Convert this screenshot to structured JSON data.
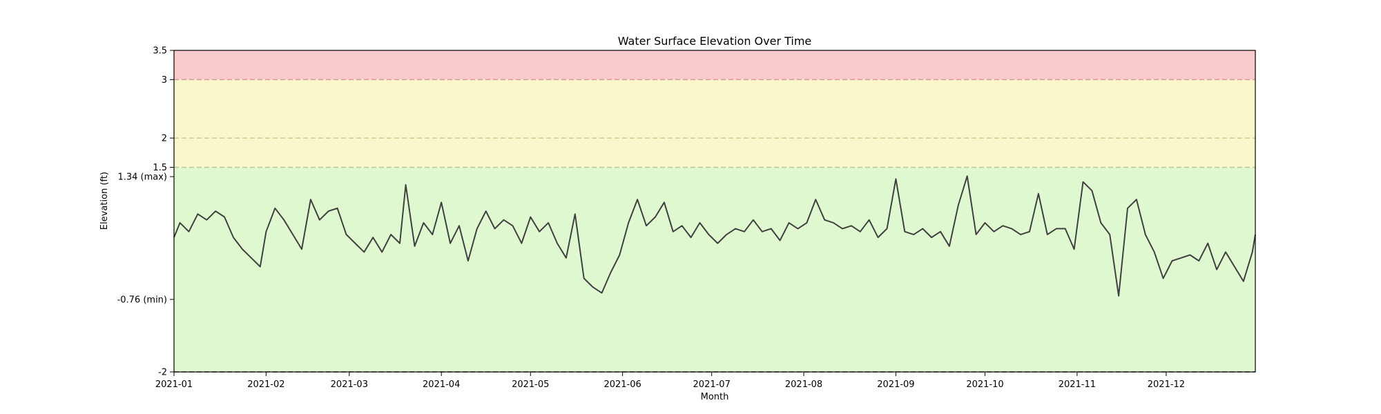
{
  "chart_data": {
    "type": "line",
    "title": "Water Surface Elevation Over Time",
    "xlabel": "Month",
    "ylabel": "Elevation (ft)",
    "xlim": [
      "2021-01-01",
      "2021-12-31"
    ],
    "ylim": [
      -2,
      3.5
    ],
    "x_ticks": [
      "2021-01",
      "2021-02",
      "2021-03",
      "2021-04",
      "2021-05",
      "2021-06",
      "2021-07",
      "2021-08",
      "2021-09",
      "2021-10",
      "2021-11",
      "2021-12"
    ],
    "y_ticks": [
      {
        "value": -2,
        "label": "-2"
      },
      {
        "value": -0.76,
        "label": "-0.76 (min)"
      },
      {
        "value": 1.34,
        "label": "1.34 (max)"
      },
      {
        "value": 1.5,
        "label": "1.5"
      },
      {
        "value": 2,
        "label": "2"
      },
      {
        "value": 3,
        "label": "3"
      },
      {
        "value": 3.5,
        "label": "3.5"
      }
    ],
    "bands": [
      {
        "from": -2,
        "to": 1.5,
        "color": "#e0f8cf"
      },
      {
        "from": 1.5,
        "to": 3,
        "color": "#f9f7cb"
      },
      {
        "from": 3,
        "to": 3.5,
        "color": "#f9cbcd"
      }
    ],
    "threshold_lines": [
      {
        "value": -2,
        "color": "#4a4a4a"
      },
      {
        "value": 1.5,
        "color": "#b8c49c"
      },
      {
        "value": 2,
        "color": "#cfcf90"
      },
      {
        "value": 3,
        "color": "#d99a9c"
      }
    ],
    "grid": false,
    "series": [
      {
        "color": "#404040",
        "x": [
          "2021-01-01",
          "2021-01-03",
          "2021-01-06",
          "2021-01-09",
          "2021-01-12",
          "2021-01-15",
          "2021-01-18",
          "2021-01-21",
          "2021-01-24",
          "2021-01-27",
          "2021-01-30",
          "2021-02-01",
          "2021-02-04",
          "2021-02-07",
          "2021-02-10",
          "2021-02-13",
          "2021-02-16",
          "2021-02-19",
          "2021-02-22",
          "2021-02-25",
          "2021-02-28",
          "2021-03-03",
          "2021-03-06",
          "2021-03-09",
          "2021-03-12",
          "2021-03-15",
          "2021-03-18",
          "2021-03-20",
          "2021-03-23",
          "2021-03-26",
          "2021-03-29",
          "2021-04-01",
          "2021-04-04",
          "2021-04-07",
          "2021-04-10",
          "2021-04-13",
          "2021-04-16",
          "2021-04-19",
          "2021-04-22",
          "2021-04-25",
          "2021-04-28",
          "2021-05-01",
          "2021-05-04",
          "2021-05-07",
          "2021-05-10",
          "2021-05-13",
          "2021-05-16",
          "2021-05-19",
          "2021-05-22",
          "2021-05-25",
          "2021-05-28",
          "2021-05-31",
          "2021-06-03",
          "2021-06-06",
          "2021-06-09",
          "2021-06-12",
          "2021-06-15",
          "2021-06-18",
          "2021-06-21",
          "2021-06-24",
          "2021-06-27",
          "2021-06-30",
          "2021-07-03",
          "2021-07-06",
          "2021-07-09",
          "2021-07-12",
          "2021-07-15",
          "2021-07-18",
          "2021-07-21",
          "2021-07-24",
          "2021-07-27",
          "2021-07-30",
          "2021-08-02",
          "2021-08-05",
          "2021-08-08",
          "2021-08-11",
          "2021-08-14",
          "2021-08-17",
          "2021-08-20",
          "2021-08-23",
          "2021-08-26",
          "2021-08-29",
          "2021-09-01",
          "2021-09-04",
          "2021-09-07",
          "2021-09-10",
          "2021-09-13",
          "2021-09-16",
          "2021-09-19",
          "2021-09-22",
          "2021-09-25",
          "2021-09-28",
          "2021-10-01",
          "2021-10-04",
          "2021-10-07",
          "2021-10-10",
          "2021-10-13",
          "2021-10-16",
          "2021-10-19",
          "2021-10-22",
          "2021-10-25",
          "2021-10-28",
          "2021-10-31",
          "2021-11-03",
          "2021-11-06",
          "2021-11-09",
          "2021-11-12",
          "2021-11-15",
          "2021-11-18",
          "2021-11-21",
          "2021-11-24",
          "2021-11-27",
          "2021-11-30",
          "2021-12-03",
          "2021-12-06",
          "2021-12-09",
          "2021-12-12",
          "2021-12-15",
          "2021-12-18",
          "2021-12-21",
          "2021-12-24",
          "2021-12-27",
          "2021-12-30",
          "2021-12-31"
        ],
        "y": [
          0.3,
          0.55,
          0.4,
          0.7,
          0.6,
          0.75,
          0.65,
          0.3,
          0.1,
          -0.05,
          -0.2,
          0.4,
          0.8,
          0.6,
          0.35,
          0.1,
          0.95,
          0.6,
          0.75,
          0.8,
          0.35,
          0.2,
          0.05,
          0.3,
          0.05,
          0.35,
          0.2,
          1.2,
          0.15,
          0.55,
          0.35,
          0.9,
          0.2,
          0.5,
          -0.1,
          0.45,
          0.75,
          0.45,
          0.6,
          0.5,
          0.2,
          0.65,
          0.4,
          0.55,
          0.2,
          -0.05,
          0.7,
          -0.4,
          -0.55,
          -0.65,
          -0.3,
          0.0,
          0.55,
          0.95,
          0.5,
          0.65,
          0.9,
          0.4,
          0.5,
          0.3,
          0.55,
          0.35,
          0.2,
          0.35,
          0.45,
          0.4,
          0.6,
          0.4,
          0.45,
          0.25,
          0.55,
          0.45,
          0.55,
          0.95,
          0.6,
          0.55,
          0.45,
          0.5,
          0.4,
          0.6,
          0.3,
          0.45,
          1.3,
          0.4,
          0.35,
          0.45,
          0.3,
          0.4,
          0.15,
          0.85,
          1.35,
          0.35,
          0.55,
          0.4,
          0.5,
          0.45,
          0.35,
          0.4,
          1.05,
          0.35,
          0.45,
          0.45,
          0.1,
          1.25,
          1.1,
          0.55,
          0.35,
          -0.7,
          0.8,
          0.95,
          0.35,
          0.05,
          -0.4,
          -0.1,
          -0.05,
          0.0,
          -0.1,
          0.2,
          -0.25,
          0.05,
          -0.2,
          -0.45,
          0.05,
          0.35
        ]
      }
    ]
  }
}
